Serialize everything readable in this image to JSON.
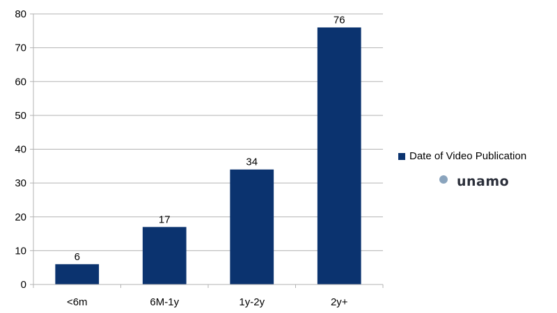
{
  "chart_data": {
    "type": "bar",
    "title": "",
    "xlabel": "",
    "ylabel": "",
    "categories": [
      "<6m",
      "6M-1y",
      "1y-2y",
      "2y+"
    ],
    "series": [
      {
        "name": "Date of Video Publication",
        "values": [
          6,
          17,
          34,
          76
        ],
        "color": "#0b336f"
      }
    ],
    "data_labels": [
      "6",
      "17",
      "34",
      "76"
    ],
    "ylim": [
      0,
      80
    ],
    "yticks": [
      0,
      10,
      20,
      30,
      40,
      50,
      60,
      70,
      80
    ],
    "grid": true,
    "legend_position": "right"
  },
  "logo": {
    "text": "unamo",
    "icon": "unamo-logo-icon"
  },
  "colors": {
    "bar": "#0b336f",
    "grid": "#b3b3b3",
    "axis": "#b3b3b3"
  }
}
